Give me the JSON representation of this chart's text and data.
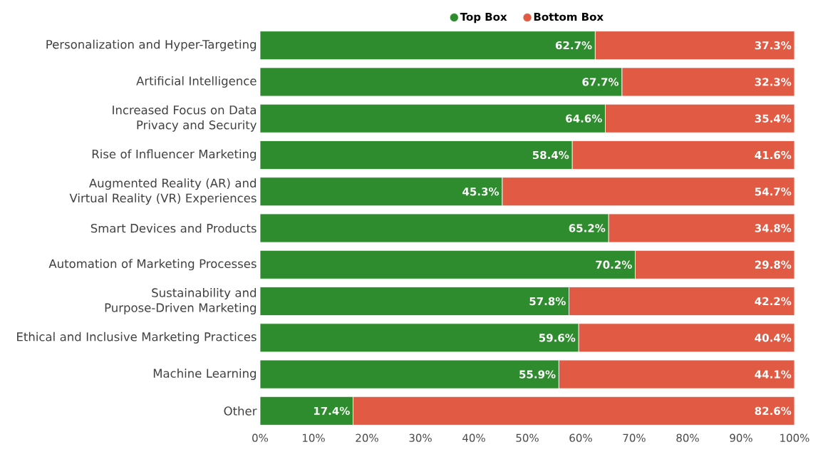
{
  "chart_data": {
    "type": "bar",
    "orientation": "horizontal",
    "stacked": true,
    "legend": "top",
    "categories": [
      "Personalization and Hyper-Targeting",
      "Artificial Intelligence",
      "Increased Focus on Data Privacy and Security",
      "Rise of Influencer Marketing",
      "Augmented Reality (AR) and Virtual Reality (VR) Experiences",
      "Smart Devices and Products",
      "Automation of Marketing Processes",
      "Sustainability and Purpose-Driven Marketing",
      "Ethical and Inclusive Marketing Practices",
      "Machine Learning",
      "Other"
    ],
    "series": [
      {
        "name": "Top Box",
        "color": "#2e8b2e",
        "values": [
          62.7,
          67.7,
          64.6,
          58.4,
          45.3,
          65.2,
          70.2,
          57.8,
          59.6,
          55.9,
          17.4
        ],
        "value_labels": [
          "62.7%",
          "67.7%",
          "64.6%",
          "58.4%",
          "45.3%",
          "65.2%",
          "70.2%",
          "57.8%",
          "59.6%",
          "55.9%",
          "17.4%"
        ]
      },
      {
        "name": "Bottom Box",
        "color": "#e05a44",
        "values": [
          37.3,
          32.3,
          35.4,
          41.6,
          54.7,
          34.8,
          29.8,
          42.2,
          40.4,
          44.1,
          82.6
        ],
        "value_labels": [
          "37.3%",
          "32.3%",
          "35.4%",
          "41.6%",
          "54.7%",
          "34.8%",
          "29.8%",
          "42.2%",
          "40.4%",
          "44.1%",
          "82.6%"
        ]
      }
    ],
    "xlim": [
      0,
      100
    ],
    "xticks": [
      {
        "value": 0,
        "label": "0%"
      },
      {
        "value": 10,
        "label": "10%"
      },
      {
        "value": 20,
        "label": "20%"
      },
      {
        "value": 30,
        "label": "30%"
      },
      {
        "value": 40,
        "label": "40%"
      },
      {
        "value": 50,
        "label": "50%"
      },
      {
        "value": 60,
        "label": "60%"
      },
      {
        "value": 70,
        "label": "70%"
      },
      {
        "value": 80,
        "label": "80%"
      },
      {
        "value": 90,
        "label": "90%"
      },
      {
        "value": 100,
        "label": "100%"
      }
    ]
  }
}
